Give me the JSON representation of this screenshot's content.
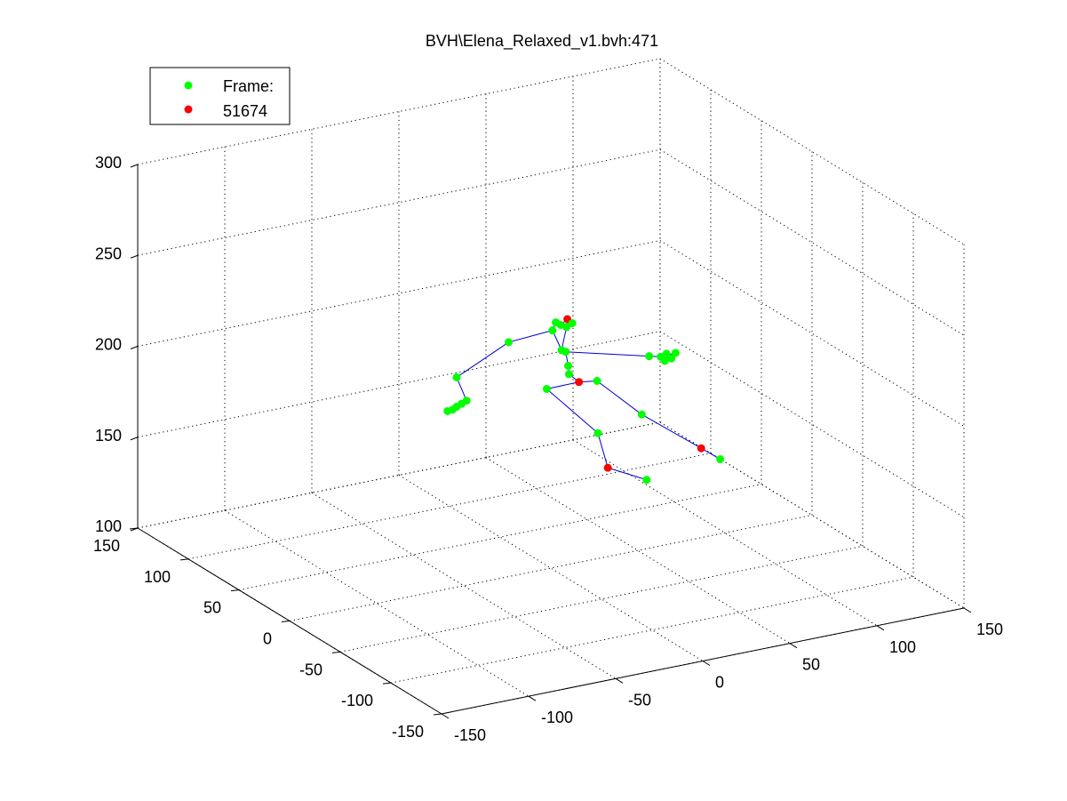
{
  "chart_data": {
    "type": "scatter",
    "title": "BVH\\Elena_Relaxed_v1.bvh:471",
    "xlim": [
      -150,
      150
    ],
    "ylim": [
      -150,
      150
    ],
    "zlim": [
      100,
      300
    ],
    "x_ticks": [
      "-150",
      "-100",
      "-50",
      "0",
      "50",
      "100",
      "150"
    ],
    "y_ticks": [
      "-150",
      "-100",
      "-50",
      "0",
      "50",
      "100",
      "150"
    ],
    "z_ticks": [
      "100",
      "150",
      "200",
      "250",
      "300"
    ],
    "grid": true,
    "legend": {
      "placement": "top-left",
      "entries": [
        {
          "label": "Frame:",
          "color": "#00ff00"
        },
        {
          "label": "51674",
          "color": "#ff0000"
        }
      ]
    },
    "joints": [
      {
        "name": "head",
        "u": 0.52,
        "v": 0.563,
        "color": "#ff0000"
      },
      {
        "name": "neck",
        "u": 0.512,
        "v": 0.584,
        "color": "#00ff00"
      },
      {
        "name": "l_clav",
        "u": 0.506,
        "v": 0.575,
        "color": "#00ff00"
      },
      {
        "name": "r_clav",
        "u": 0.526,
        "v": 0.578,
        "color": "#00ff00"
      },
      {
        "name": "r_shoulder",
        "u": 0.519,
        "v": 0.592,
        "color": "#00ff00"
      },
      {
        "name": "l_shoulder",
        "u": 0.502,
        "v": 0.604,
        "color": "#00ff00"
      },
      {
        "name": "l_elbow",
        "u": 0.449,
        "v": 0.647,
        "color": "#00ff00"
      },
      {
        "name": "l_wrist",
        "u": 0.386,
        "v": 0.775,
        "color": "#00ff00"
      },
      {
        "name": "l_hand1",
        "u": 0.398,
        "v": 0.86,
        "color": "#00ff00"
      },
      {
        "name": "l_hand2",
        "u": 0.392,
        "v": 0.871,
        "color": "#00ff00"
      },
      {
        "name": "l_hand3",
        "u": 0.386,
        "v": 0.882,
        "color": "#00ff00"
      },
      {
        "name": "l_hand4",
        "u": 0.381,
        "v": 0.893,
        "color": "#00ff00"
      },
      {
        "name": "l_hand5",
        "u": 0.375,
        "v": 0.898,
        "color": "#00ff00"
      },
      {
        "name": "spine1",
        "u": 0.513,
        "v": 0.676,
        "color": "#00ff00"
      },
      {
        "name": "spine2",
        "u": 0.518,
        "v": 0.682,
        "color": "#00ff00"
      },
      {
        "name": "r_elbow",
        "u": 0.619,
        "v": 0.698,
        "color": "#00ff00"
      },
      {
        "name": "r_hand1",
        "u": 0.633,
        "v": 0.7,
        "color": "#00ff00"
      },
      {
        "name": "r_hand2",
        "u": 0.64,
        "v": 0.689,
        "color": "#00ff00"
      },
      {
        "name": "r_hand3",
        "u": 0.651,
        "v": 0.686,
        "color": "#00ff00"
      },
      {
        "name": "r_hand4",
        "u": 0.646,
        "v": 0.706,
        "color": "#00ff00"
      },
      {
        "name": "r_hand5",
        "u": 0.638,
        "v": 0.715,
        "color": "#00ff00"
      },
      {
        "name": "spine3",
        "u": 0.521,
        "v": 0.733,
        "color": "#00ff00"
      },
      {
        "name": "spine4",
        "u": 0.522,
        "v": 0.763,
        "color": "#00ff00"
      },
      {
        "name": "hips",
        "u": 0.534,
        "v": 0.792,
        "color": "#ff0000"
      },
      {
        "name": "r_hip",
        "u": 0.556,
        "v": 0.788,
        "color": "#00ff00"
      },
      {
        "name": "l_hip",
        "u": 0.495,
        "v": 0.817,
        "color": "#00ff00"
      },
      {
        "name": "l_knee",
        "u": 0.557,
        "v": 0.978,
        "color": "#00ff00"
      },
      {
        "name": "l_ankle",
        "u": 0.569,
        "v": 1.104,
        "color": "#ff0000"
      },
      {
        "name": "l_toe",
        "u": 0.616,
        "v": 1.148,
        "color": "#00ff00"
      },
      {
        "name": "r_knee",
        "u": 0.61,
        "v": 0.91,
        "color": "#00ff00"
      },
      {
        "name": "r_ankle",
        "u": 0.682,
        "v": 1.033,
        "color": "#ff0000"
      },
      {
        "name": "r_toe",
        "u": 0.705,
        "v": 1.073,
        "color": "#00ff00"
      }
    ],
    "bones": [
      [
        "head",
        "neck"
      ],
      [
        "neck",
        "l_clav"
      ],
      [
        "neck",
        "r_clav"
      ],
      [
        "l_clav",
        "l_shoulder"
      ],
      [
        "l_shoulder",
        "l_elbow"
      ],
      [
        "l_elbow",
        "l_wrist"
      ],
      [
        "l_wrist",
        "l_hand1"
      ],
      [
        "l_hand1",
        "l_hand2"
      ],
      [
        "l_hand2",
        "l_hand3"
      ],
      [
        "l_hand3",
        "l_hand4"
      ],
      [
        "l_hand4",
        "l_hand5"
      ],
      [
        "r_clav",
        "r_shoulder"
      ],
      [
        "r_shoulder",
        "spine1"
      ],
      [
        "l_shoulder",
        "spine1"
      ],
      [
        "spine1",
        "spine2"
      ],
      [
        "spine2",
        "r_elbow"
      ],
      [
        "r_elbow",
        "r_hand1"
      ],
      [
        "r_hand1",
        "r_hand2"
      ],
      [
        "r_hand1",
        "r_hand3"
      ],
      [
        "r_hand1",
        "r_hand4"
      ],
      [
        "r_hand1",
        "r_hand5"
      ],
      [
        "spine2",
        "spine3"
      ],
      [
        "spine3",
        "spine4"
      ],
      [
        "spine4",
        "hips"
      ],
      [
        "hips",
        "r_hip"
      ],
      [
        "hips",
        "l_hip"
      ],
      [
        "l_hip",
        "l_knee"
      ],
      [
        "l_knee",
        "l_ankle"
      ],
      [
        "l_ankle",
        "l_toe"
      ],
      [
        "r_hip",
        "r_knee"
      ],
      [
        "r_knee",
        "r_ankle"
      ],
      [
        "r_ankle",
        "r_toe"
      ]
    ]
  }
}
